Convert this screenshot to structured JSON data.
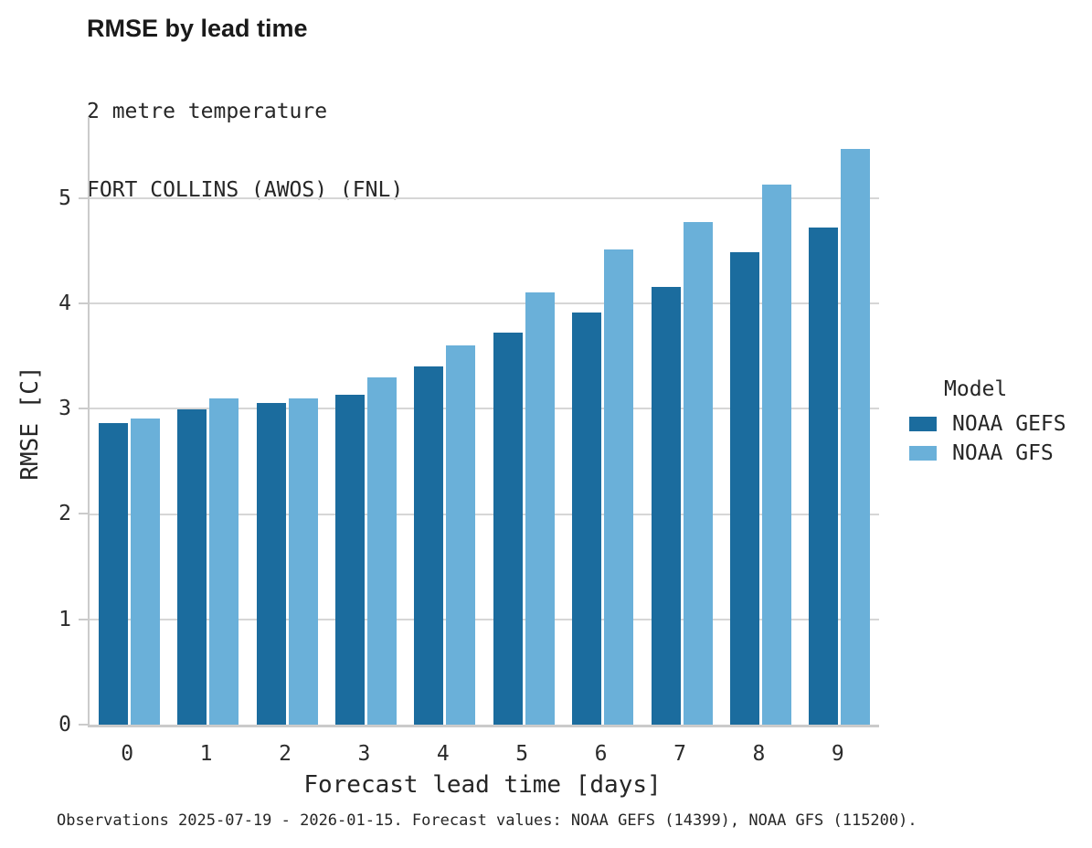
{
  "header": {
    "title": "RMSE by lead time",
    "subtitle_line1": "2 metre temperature",
    "subtitle_line2": "FORT COLLINS (AWOS) (FNL)"
  },
  "chart_data": {
    "type": "bar",
    "title": "RMSE by lead time",
    "subtitle": "2 metre temperature / FORT COLLINS (AWOS) (FNL)",
    "categories": [
      "0",
      "1",
      "2",
      "3",
      "4",
      "5",
      "6",
      "7",
      "8",
      "9"
    ],
    "series": [
      {
        "name": "NOAA GEFS",
        "color": "#1b6c9e",
        "values": [
          2.86,
          2.99,
          3.05,
          3.13,
          3.4,
          3.72,
          3.91,
          4.16,
          4.49,
          4.72
        ]
      },
      {
        "name": "NOAA GFS",
        "color": "#6ab0d9",
        "values": [
          2.91,
          3.1,
          3.1,
          3.3,
          3.6,
          4.1,
          4.51,
          4.77,
          5.13,
          5.47
        ]
      }
    ],
    "xlabel": "Forecast lead time [days]",
    "ylabel": "RMSE [C]",
    "yticks": [
      0,
      1,
      2,
      3,
      4,
      5
    ],
    "ylim": [
      0,
      5.77
    ],
    "grid": "horizontal",
    "gridline_color": "#d6d6d6",
    "axis_color": "#cbcbcb",
    "legend_position": "right"
  },
  "legend": {
    "title": "Model",
    "entries": [
      {
        "label": "NOAA GEFS",
        "color": "#1b6c9e"
      },
      {
        "label": "NOAA GFS",
        "color": "#6ab0d9"
      }
    ]
  },
  "caption": "Observations 2025-07-19 - 2026-01-15. Forecast values: NOAA GEFS (14399), NOAA GFS (115200)."
}
